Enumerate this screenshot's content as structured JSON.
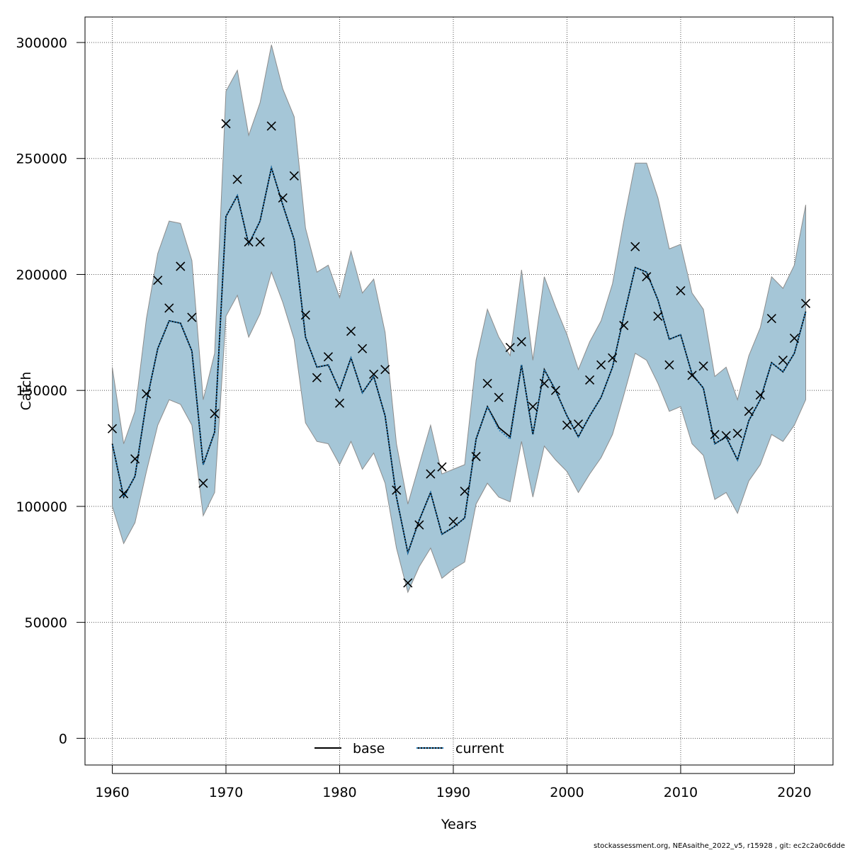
{
  "chart_data": {
    "type": "line",
    "xlabel": "Years",
    "ylabel": "Catch",
    "xlim": [
      1957.6,
      2023.4
    ],
    "ylim": [
      -11500,
      311000
    ],
    "x_ticks": [
      1960,
      1970,
      1980,
      1990,
      2000,
      2010,
      2020
    ],
    "y_ticks": [
      0,
      50000,
      100000,
      150000,
      200000,
      250000,
      300000
    ],
    "grid": true,
    "legend_position": "bottom",
    "colors": {
      "band": "#a5c6d7",
      "band_edge": "#8c8c8c",
      "current": "#1f77b4",
      "base": "#000000",
      "grid": "#555555"
    },
    "x": [
      1960,
      1961,
      1962,
      1963,
      1964,
      1965,
      1966,
      1967,
      1968,
      1969,
      1970,
      1971,
      1972,
      1973,
      1974,
      1975,
      1976,
      1977,
      1978,
      1979,
      1980,
      1981,
      1982,
      1983,
      1984,
      1985,
      1986,
      1987,
      1988,
      1989,
      1990,
      1991,
      1992,
      1993,
      1994,
      1995,
      1996,
      1997,
      1998,
      1999,
      2000,
      2001,
      2002,
      2003,
      2004,
      2005,
      2006,
      2007,
      2008,
      2009,
      2010,
      2011,
      2012,
      2013,
      2014,
      2015,
      2016,
      2017,
      2018,
      2019,
      2020,
      2021
    ],
    "series": [
      {
        "name": "base",
        "style": "solid",
        "values": [
          127000,
          104000,
          113000,
          145000,
          168000,
          180000,
          179000,
          167000,
          118000,
          132000,
          225000,
          234000,
          213000,
          223000,
          246000,
          230000,
          215000,
          173000,
          160000,
          161000,
          150000,
          164000,
          149000,
          156000,
          139000,
          104000,
          80000,
          94000,
          106000,
          88000,
          91000,
          95000,
          129000,
          143000,
          134000,
          130000,
          161000,
          131000,
          159000,
          150000,
          139000,
          130000,
          139000,
          147000,
          160000,
          182000,
          203000,
          201000,
          189000,
          172000,
          174000,
          157000,
          151000,
          127000,
          130000,
          120000,
          137000,
          146000,
          162000,
          158000,
          166000,
          184000
        ]
      },
      {
        "name": "current",
        "style": "dotted",
        "values": [
          127000,
          104000,
          113000,
          145000,
          168000,
          180000,
          179000,
          167000,
          118000,
          132000,
          225000,
          234000,
          213000,
          223000,
          246000,
          230000,
          215000,
          173000,
          160000,
          161000,
          150000,
          164000,
          149000,
          156000,
          139000,
          104000,
          80000,
          94000,
          106000,
          88000,
          91000,
          95000,
          129000,
          143000,
          133000,
          129000,
          161000,
          131000,
          159000,
          150000,
          139000,
          130000,
          139000,
          147000,
          160000,
          182000,
          203000,
          201000,
          189000,
          172000,
          174000,
          157000,
          151000,
          127000,
          130000,
          120000,
          137000,
          146000,
          162000,
          158000,
          166000,
          184000
        ]
      }
    ],
    "band": {
      "upper": [
        160000,
        127000,
        141000,
        181000,
        209000,
        223000,
        222000,
        206000,
        146000,
        166000,
        279000,
        288000,
        260000,
        274000,
        299000,
        280000,
        268000,
        220000,
        201000,
        204000,
        190000,
        210000,
        192000,
        198000,
        175000,
        127000,
        101000,
        118000,
        135000,
        114000,
        116000,
        118000,
        163000,
        185000,
        173000,
        165000,
        202000,
        163000,
        199000,
        186000,
        174000,
        159000,
        171000,
        180000,
        196000,
        223000,
        248000,
        248000,
        233000,
        211000,
        213000,
        192000,
        185000,
        156000,
        160000,
        146000,
        165000,
        177000,
        199000,
        194000,
        204000,
        230000
      ],
      "lower": [
        100000,
        84000,
        93000,
        115000,
        135000,
        146000,
        144000,
        135000,
        96000,
        106000,
        182000,
        191000,
        173000,
        183000,
        201000,
        188000,
        172000,
        136000,
        128000,
        127000,
        118000,
        128000,
        116000,
        123000,
        110000,
        82000,
        63000,
        74000,
        82000,
        69000,
        73000,
        76000,
        101000,
        110000,
        104000,
        102000,
        128000,
        104000,
        126000,
        120000,
        115000,
        106000,
        114000,
        121000,
        131000,
        148000,
        166000,
        163000,
        153000,
        141000,
        143000,
        127000,
        122000,
        103000,
        106000,
        97000,
        111000,
        118000,
        131000,
        128000,
        135000,
        146000
      ]
    },
    "observed": [
      133500,
      105500,
      120500,
      148500,
      197500,
      185500,
      203500,
      181500,
      110000,
      140000,
      265000,
      241000,
      214000,
      214000,
      264000,
      233000,
      242500,
      182500,
      155500,
      164500,
      144500,
      175500,
      168000,
      157000,
      159000,
      107000,
      67000,
      92000,
      114000,
      117000,
      93500,
      106500,
      121500,
      153000,
      147000,
      168500,
      171000,
      143000,
      153000,
      150000,
      135000,
      135500,
      154500,
      161000,
      164000,
      178000,
      212000,
      199000,
      182000,
      161000,
      193000,
      156500,
      160500,
      131000,
      130500,
      131500,
      141000,
      148000,
      181000,
      163000,
      172500,
      187500
    ]
  },
  "footer": "stockassessment.org, NEAsaithe_2022_v5, r15928 , git: ec2c2a0c6dde"
}
